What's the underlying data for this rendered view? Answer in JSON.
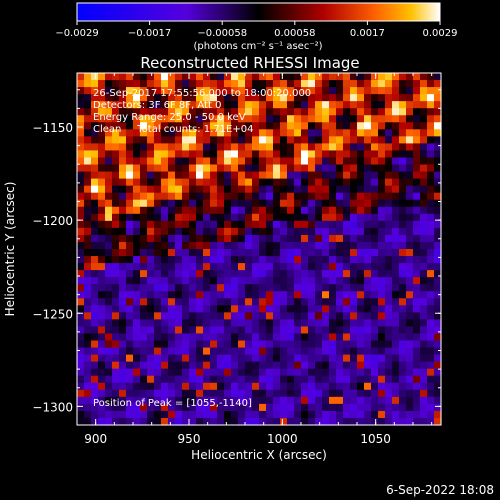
{
  "chart_data": {
    "type": "heatmap",
    "title": "Reconstructed RHESSI Image",
    "xlabel": "Heliocentric X (arcsec)",
    "ylabel": "Heliocentric Y (arcsec)",
    "xlim": [
      890,
      1085
    ],
    "ylim": [
      -1310,
      -1121
    ],
    "x_ticks": [
      "900",
      "950",
      "1000",
      "1050"
    ],
    "y_ticks": [
      "-1150",
      "-1200",
      "-1250",
      "-1300"
    ],
    "colorbar": {
      "ticks": [
        "-0.0029",
        "-0.0017",
        "-0.00058",
        "0.00058",
        "0.0017",
        "0.0029"
      ],
      "min": -0.0029,
      "max": 0.0029,
      "unit_label": "(photons cm⁻² s⁻¹ asec⁻²)"
    },
    "annotations": [
      "26-Sep-2017 17:55:56.000 to 18:00:20.000",
      "Detectors: 3F 6F 8F, Att 0",
      "Energy Range: 25.0 - 50.0 keV",
      "Clean     Total counts: 1.71E+04"
    ],
    "peak_label": "Position of Peak = [1055,-1140]",
    "footer_date": "6-Sep-2022 18:08"
  }
}
